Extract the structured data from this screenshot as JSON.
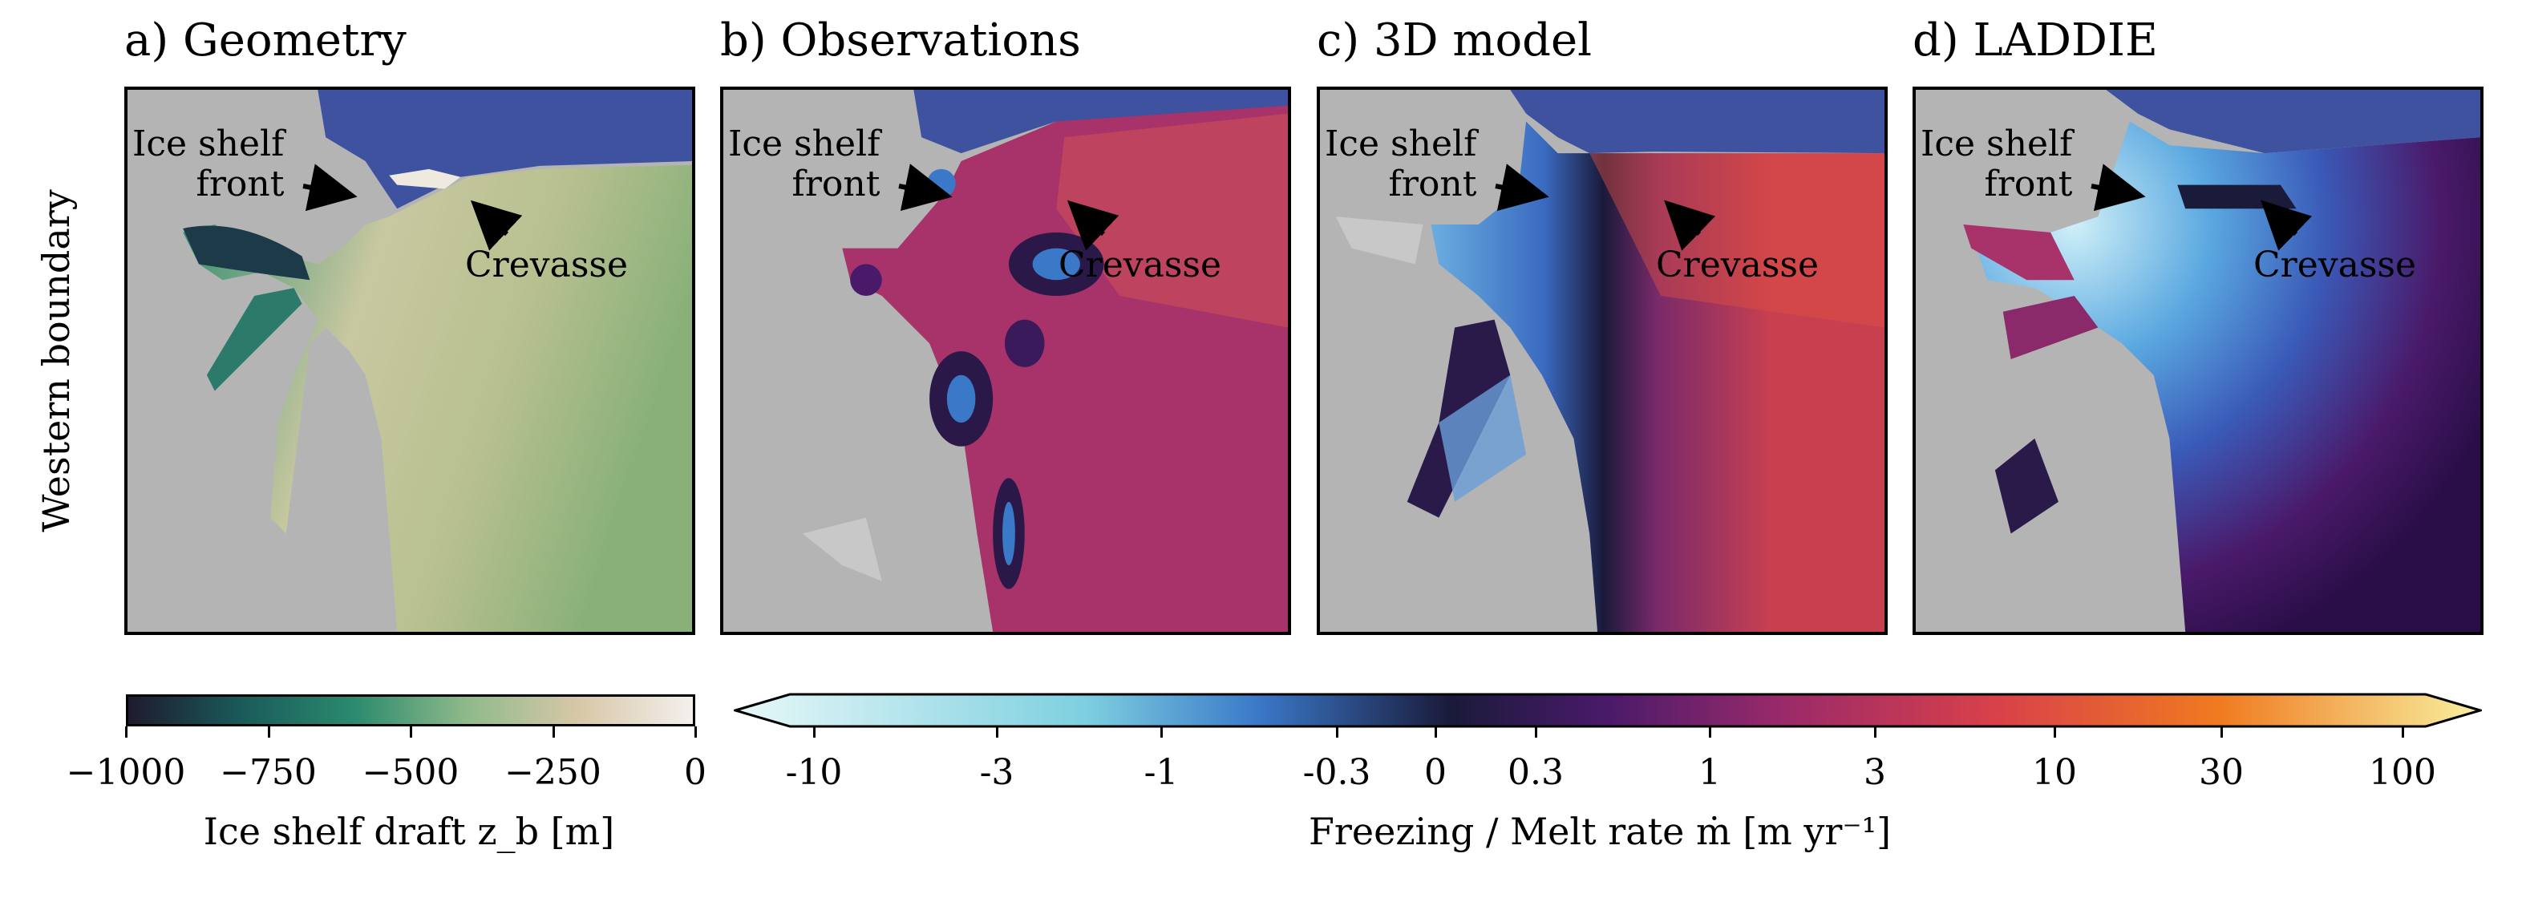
{
  "panels": [
    {
      "title": "a) Geometry"
    },
    {
      "title": "b) Observations"
    },
    {
      "title": "c) 3D model"
    },
    {
      "title": "d) LADDIE"
    }
  ],
  "annotations": {
    "front_line1": "Ice shelf",
    "front_line2": "front",
    "crevasse": "Crevasse"
  },
  "ylabel": "Western boundary",
  "colorbar_left": {
    "label": "Ice shelf draft z_b [m]",
    "ticks": [
      "−1000",
      "−750",
      "−500",
      "−250",
      "0"
    ],
    "colors": [
      "#1f1a2e",
      "#1a5a5a",
      "#2b8a6e",
      "#8fba8a",
      "#d8c8a8",
      "#f4f0ee"
    ]
  },
  "colorbar_right": {
    "label": "Freezing / Melt rate ṁ [m yr⁻¹]",
    "ticks": [
      "-10",
      "-3",
      "-1",
      "-0.3",
      "0",
      "0.3",
      "1",
      "3",
      "10",
      "30",
      "100"
    ],
    "colors": [
      "#e8f8f8",
      "#7ed0e0",
      "#3a78c8",
      "#1a1a3a",
      "#4a1a6a",
      "#9a2a6a",
      "#d8404a",
      "#f07a20",
      "#f8f0a0"
    ]
  }
}
